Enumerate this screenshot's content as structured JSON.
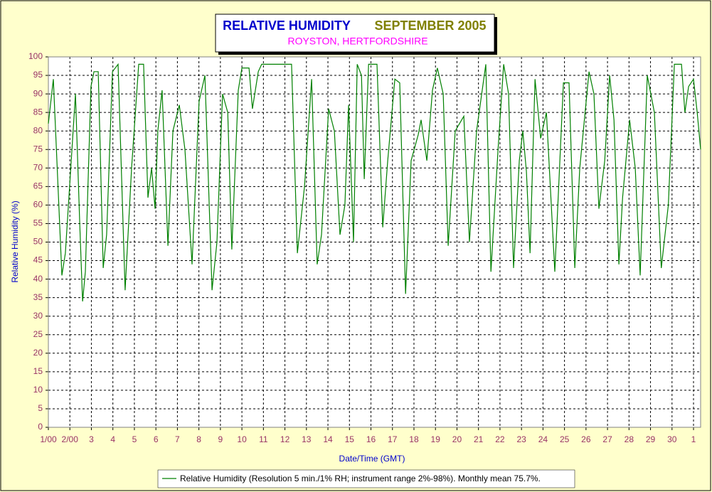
{
  "chart_data": {
    "type": "line",
    "title": "RELATIVE HUMIDITY",
    "title_period": "SEPTEMBER 2005",
    "subtitle": "ROYSTON, HERTFORDSHIRE",
    "y_label": "Relative Humidity (%)",
    "x_label": "Date/Time (GMT)",
    "xlim": [
      0,
      30.33
    ],
    "ylim": [
      0,
      100
    ],
    "yticks": [
      0,
      5,
      10,
      15,
      20,
      25,
      30,
      35,
      40,
      45,
      50,
      55,
      60,
      65,
      70,
      75,
      80,
      85,
      90,
      95,
      100
    ],
    "xticks": [
      {
        "value": 0,
        "label": "1/00"
      },
      {
        "value": 1,
        "label": "2/00"
      },
      {
        "value": 2,
        "label": "3"
      },
      {
        "value": 3,
        "label": "4"
      },
      {
        "value": 4,
        "label": "5"
      },
      {
        "value": 5,
        "label": "6"
      },
      {
        "value": 6,
        "label": "7"
      },
      {
        "value": 7,
        "label": "8"
      },
      {
        "value": 8,
        "label": "9"
      },
      {
        "value": 9,
        "label": "10"
      },
      {
        "value": 10,
        "label": "11"
      },
      {
        "value": 11,
        "label": "12"
      },
      {
        "value": 12,
        "label": "13"
      },
      {
        "value": 13,
        "label": "14"
      },
      {
        "value": 14,
        "label": "15"
      },
      {
        "value": 15,
        "label": "16"
      },
      {
        "value": 16,
        "label": "17"
      },
      {
        "value": 17,
        "label": "18"
      },
      {
        "value": 18,
        "label": "19"
      },
      {
        "value": 19,
        "label": "20"
      },
      {
        "value": 20,
        "label": "21"
      },
      {
        "value": 21,
        "label": "22"
      },
      {
        "value": 22,
        "label": "23"
      },
      {
        "value": 23,
        "label": "24"
      },
      {
        "value": 24,
        "label": "25"
      },
      {
        "value": 25,
        "label": "26"
      },
      {
        "value": 26,
        "label": "27"
      },
      {
        "value": 27,
        "label": "28"
      },
      {
        "value": 28,
        "label": "29"
      },
      {
        "value": 29,
        "label": "30"
      },
      {
        "value": 30,
        "label": "1"
      }
    ],
    "grid": true,
    "series": [
      {
        "name": "Relative Humidity (Resolution 5 min./1% RH; instrument range 2%-98%). Monthly mean 75.7%.",
        "color": "#008000",
        "x": [
          0,
          0.23,
          0.63,
          0.79,
          1.26,
          1.46,
          1.59,
          1.72,
          1.98,
          2.12,
          2.32,
          2.55,
          2.71,
          2.98,
          3.24,
          3.57,
          3.87,
          4.2,
          4.43,
          4.63,
          4.8,
          4.96,
          5.09,
          5.29,
          5.56,
          5.79,
          6.09,
          6.35,
          6.68,
          7.01,
          7.28,
          7.61,
          7.84,
          8.1,
          8.34,
          8.53,
          8.83,
          9.0,
          9.33,
          9.49,
          9.76,
          9.92,
          11.31,
          11.58,
          11.91,
          12.24,
          12.5,
          12.7,
          13.03,
          13.3,
          13.56,
          13.79,
          13.96,
          14.19,
          14.36,
          14.56,
          14.69,
          14.89,
          15.28,
          15.55,
          15.78,
          16.11,
          16.34,
          16.61,
          16.87,
          17.2,
          17.33,
          17.6,
          17.86,
          18.09,
          18.36,
          18.59,
          18.92,
          19.32,
          19.58,
          19.91,
          20.34,
          20.58,
          20.91,
          21.17,
          21.4,
          21.63,
          21.9,
          22.06,
          22.23,
          22.4,
          22.63,
          22.89,
          23.16,
          23.55,
          23.95,
          24.21,
          24.48,
          24.71,
          25.14,
          25.37,
          25.6,
          25.87,
          26.1,
          26.3,
          26.53,
          26.7,
          27.03,
          27.29,
          27.52,
          27.85,
          28.18,
          28.5,
          28.83,
          29.11,
          29.44,
          29.6,
          29.77,
          30.0,
          30.17,
          30.33
        ],
        "values": [
          82,
          94,
          41,
          47,
          90,
          55,
          34,
          42,
          92,
          96,
          96,
          43,
          52,
          96,
          98,
          37,
          70,
          98,
          98,
          62,
          70,
          59,
          80,
          91,
          49,
          80,
          87,
          75,
          44,
          88,
          95,
          37,
          50,
          90,
          85,
          48,
          91,
          97,
          97,
          86,
          96,
          98,
          98,
          47,
          65,
          94,
          44,
          52,
          86,
          80,
          52,
          60,
          87,
          50,
          98,
          95,
          67,
          98,
          98,
          54,
          72,
          94,
          93,
          36,
          72,
          79,
          83,
          72,
          91,
          97,
          90,
          49,
          80,
          84,
          50,
          80,
          98,
          42,
          75,
          98,
          90,
          43,
          72,
          80,
          69,
          47,
          94,
          78,
          85,
          42,
          93,
          93,
          43,
          70,
          96,
          90,
          59,
          72,
          95,
          83,
          44,
          62,
          83,
          70,
          41,
          95,
          85,
          43,
          60,
          98,
          98,
          85,
          92,
          94,
          85,
          75
        ]
      }
    ]
  }
}
